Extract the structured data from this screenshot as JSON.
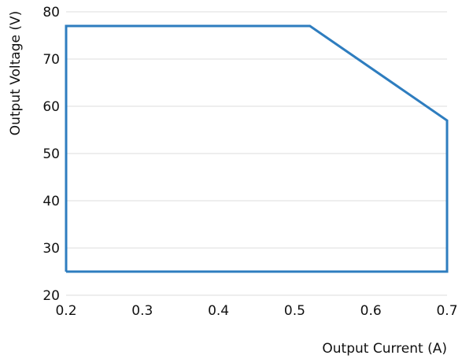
{
  "chart_data": {
    "type": "line",
    "title": "",
    "xlabel": "Output Current (A)",
    "ylabel": "Output Voltage (V)",
    "xlim": [
      0.2,
      0.7
    ],
    "ylim": [
      20,
      80
    ],
    "x_ticks": [
      "0.2",
      "0.3",
      "0.4",
      "0.5",
      "0.6",
      "0.7"
    ],
    "y_ticks": [
      "20",
      "30",
      "40",
      "50",
      "60",
      "70",
      "80"
    ],
    "grid": "horizontal",
    "legend": "none",
    "series": [
      {
        "color": "#2e7dbf",
        "x": [
          0.2,
          0.2,
          0.52,
          0.7,
          0.7,
          0.2
        ],
        "y": [
          25,
          77,
          77,
          57,
          25,
          25
        ]
      }
    ]
  },
  "colors": {
    "line": "#2e7dbf",
    "grid": "#dcdcdc",
    "text": "#111111"
  }
}
